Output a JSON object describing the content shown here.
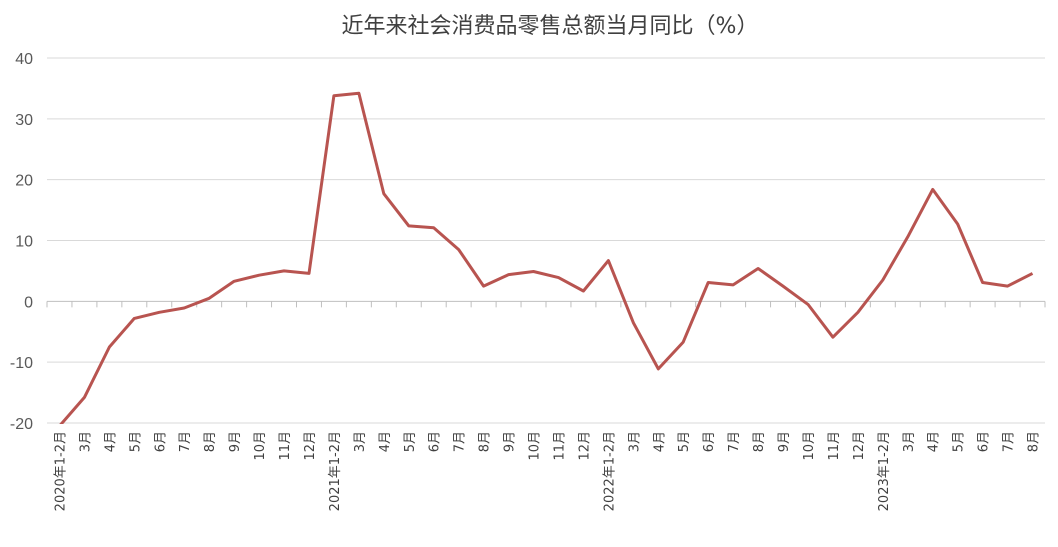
{
  "chart_data": {
    "type": "line",
    "title": "近年来社会消费品零售总额当月同比（%）",
    "xlabel": "",
    "ylabel": "",
    "ylim": [
      -20,
      40
    ],
    "yticks": [
      "40",
      "30",
      "20",
      "10",
      "0",
      "-10",
      "-20"
    ],
    "grid": true,
    "legend": "none",
    "line_color": "#B85450",
    "categories": [
      "2020年1-2月",
      "3月",
      "4月",
      "5月",
      "6月",
      "7月",
      "8月",
      "9月",
      "10月",
      "11月",
      "12月",
      "2021年1-2月",
      "3月",
      "4月",
      "5月",
      "6月",
      "7月",
      "8月",
      "9月",
      "10月",
      "11月",
      "12月",
      "2022年1-2月",
      "3月",
      "4月",
      "5月",
      "6月",
      "7月",
      "8月",
      "9月",
      "10月",
      "11月",
      "12月",
      "2023年1-2月",
      "3月",
      "4月",
      "5月",
      "6月",
      "7月",
      "8月"
    ],
    "series": [
      {
        "values": [
          -20.5,
          -15.8,
          -7.5,
          -2.8,
          -1.8,
          -1.1,
          0.5,
          3.3,
          4.3,
          5.0,
          4.6,
          33.8,
          34.2,
          17.7,
          12.4,
          12.1,
          8.5,
          2.5,
          4.4,
          4.9,
          3.9,
          1.7,
          6.7,
          -3.5,
          -11.1,
          -6.7,
          3.1,
          2.7,
          5.4,
          2.5,
          -0.5,
          -5.9,
          -1.8,
          3.5,
          10.6,
          18.4,
          12.7,
          3.1,
          2.5,
          4.6
        ]
      }
    ]
  }
}
